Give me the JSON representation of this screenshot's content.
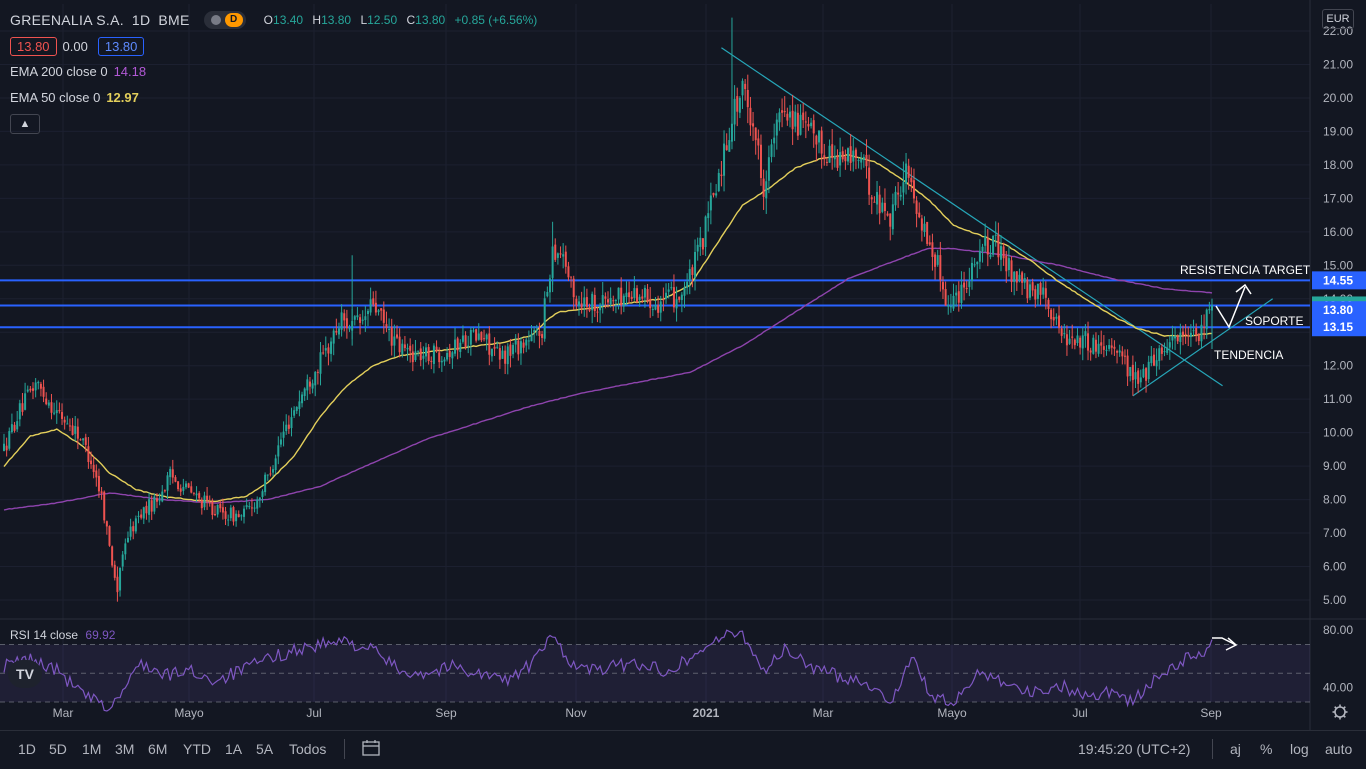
{
  "header": {
    "symbol": "GREENALIA S.A.",
    "interval": "1D",
    "exchange": "BME",
    "market_status_letter": "D",
    "ohlc": [
      {
        "key": "O",
        "value": "13.40"
      },
      {
        "key": "H",
        "value": "13.80"
      },
      {
        "key": "L",
        "value": "12.50"
      },
      {
        "key": "C",
        "value": "13.80"
      }
    ],
    "change": "+0.85 (+6.56%)",
    "bid": "13.80",
    "spread": "0.00",
    "ask": "13.80"
  },
  "indicators": {
    "ema200_label": "EMA 200 close 0",
    "ema200_value": "14.18",
    "ema50_label": "EMA 50 close 0",
    "ema50_value": "12.97",
    "rsi_label": "RSI 14 close",
    "rsi_value": "69.92"
  },
  "currency": "EUR",
  "colors": {
    "background": "#131722",
    "grid": "#1f2433",
    "up": "#26a69a",
    "down": "#ef5350",
    "ema50": "#e3cf5b",
    "ema200": "#8e44ad",
    "rsi": "#7e57c2",
    "hline": "#2962ff",
    "trend": "#26a6b8",
    "annotation": "#ffffff"
  },
  "chart_data": {
    "type": "candlestick",
    "y_axis_ticks": [
      "5.00",
      "6.00",
      "7.00",
      "8.00",
      "9.00",
      "10.00",
      "11.00",
      "12.00",
      "13.00",
      "14.00",
      "15.00",
      "16.00",
      "17.00",
      "18.00",
      "19.00",
      "20.00",
      "21.00",
      "22.00"
    ],
    "ylim": [
      4.6,
      22.3
    ],
    "x_axis_labels": [
      "Mar",
      "Mayo",
      "Jul",
      "Sep",
      "Nov",
      "2021",
      "Mar",
      "Mayo",
      "Jul",
      "Sep"
    ],
    "price_anchors": [
      [
        0,
        9.5
      ],
      [
        5,
        10.5
      ],
      [
        12,
        11.5
      ],
      [
        20,
        10.6
      ],
      [
        28,
        10.0
      ],
      [
        33,
        9.2
      ],
      [
        37,
        8.1
      ],
      [
        40,
        6.6
      ],
      [
        43,
        5.3
      ],
      [
        46,
        6.8
      ],
      [
        52,
        7.6
      ],
      [
        58,
        8.0
      ],
      [
        63,
        8.7
      ],
      [
        68,
        8.4
      ],
      [
        74,
        8.0
      ],
      [
        82,
        7.6
      ],
      [
        90,
        7.5
      ],
      [
        96,
        8.0
      ],
      [
        100,
        8.7
      ],
      [
        105,
        9.8
      ],
      [
        110,
        10.7
      ],
      [
        116,
        11.6
      ],
      [
        122,
        12.4
      ],
      [
        128,
        13.4
      ],
      [
        132,
        13.2
      ],
      [
        136,
        13.3
      ],
      [
        140,
        13.9
      ],
      [
        144,
        13.2
      ],
      [
        150,
        12.5
      ],
      [
        160,
        12.3
      ],
      [
        170,
        12.5
      ],
      [
        176,
        12.9
      ],
      [
        182,
        12.8
      ],
      [
        188,
        12.2
      ],
      [
        194,
        12.6
      ],
      [
        200,
        12.8
      ],
      [
        204,
        13.1
      ],
      [
        208,
        15.5
      ],
      [
        212,
        15.4
      ],
      [
        216,
        14.0
      ],
      [
        224,
        13.9
      ],
      [
        232,
        14.0
      ],
      [
        240,
        14.2
      ],
      [
        248,
        13.9
      ],
      [
        256,
        14.1
      ],
      [
        260,
        14.6
      ],
      [
        265,
        15.8
      ],
      [
        268,
        16.8
      ],
      [
        272,
        18.0
      ],
      [
        276,
        19.5
      ],
      [
        280,
        20.2
      ],
      [
        284,
        19.3
      ],
      [
        288,
        17.4
      ],
      [
        292,
        18.8
      ],
      [
        296,
        19.8
      ],
      [
        300,
        19.3
      ],
      [
        306,
        18.9
      ],
      [
        312,
        18.4
      ],
      [
        318,
        18.2
      ],
      [
        324,
        18.3
      ],
      [
        330,
        17.0
      ],
      [
        336,
        16.5
      ],
      [
        342,
        17.8
      ],
      [
        346,
        16.8
      ],
      [
        350,
        15.8
      ],
      [
        354,
        15.0
      ],
      [
        358,
        13.8
      ],
      [
        362,
        14.2
      ],
      [
        366,
        14.8
      ],
      [
        370,
        15.5
      ],
      [
        376,
        15.6
      ],
      [
        380,
        15.0
      ],
      [
        386,
        14.5
      ],
      [
        390,
        14.0
      ],
      [
        394,
        14.4
      ],
      [
        398,
        13.4
      ],
      [
        402,
        12.9
      ],
      [
        408,
        12.8
      ],
      [
        414,
        12.6
      ],
      [
        420,
        12.7
      ],
      [
        424,
        12.3
      ],
      [
        428,
        11.6
      ],
      [
        432,
        11.7
      ],
      [
        436,
        12.2
      ],
      [
        440,
        12.6
      ],
      [
        446,
        13.0
      ],
      [
        450,
        12.7
      ],
      [
        454,
        13.0
      ],
      [
        458,
        13.8
      ]
    ],
    "ema50_anchors": [
      [
        0,
        9.0
      ],
      [
        10,
        9.9
      ],
      [
        20,
        10.1
      ],
      [
        30,
        9.6
      ],
      [
        40,
        8.8
      ],
      [
        50,
        8.3
      ],
      [
        60,
        8.1
      ],
      [
        70,
        8.0
      ],
      [
        80,
        7.95
      ],
      [
        92,
        8.1
      ],
      [
        100,
        8.5
      ],
      [
        110,
        9.3
      ],
      [
        120,
        10.5
      ],
      [
        130,
        11.4
      ],
      [
        140,
        12.0
      ],
      [
        150,
        12.3
      ],
      [
        160,
        12.4
      ],
      [
        170,
        12.5
      ],
      [
        180,
        12.6
      ],
      [
        190,
        12.7
      ],
      [
        200,
        12.9
      ],
      [
        205,
        13.3
      ],
      [
        210,
        13.6
      ],
      [
        220,
        13.7
      ],
      [
        230,
        13.8
      ],
      [
        240,
        13.9
      ],
      [
        250,
        14.0
      ],
      [
        260,
        14.4
      ],
      [
        270,
        15.6
      ],
      [
        280,
        16.8
      ],
      [
        290,
        17.3
      ],
      [
        300,
        17.9
      ],
      [
        310,
        18.2
      ],
      [
        320,
        18.3
      ],
      [
        330,
        18.1
      ],
      [
        340,
        17.6
      ],
      [
        350,
        17.0
      ],
      [
        360,
        16.2
      ],
      [
        370,
        15.9
      ],
      [
        380,
        15.6
      ],
      [
        390,
        15.1
      ],
      [
        400,
        14.5
      ],
      [
        410,
        14.0
      ],
      [
        420,
        13.5
      ],
      [
        430,
        13.1
      ],
      [
        440,
        12.9
      ],
      [
        450,
        12.9
      ],
      [
        458,
        12.97
      ]
    ],
    "ema200_anchors": [
      [
        0,
        7.7
      ],
      [
        20,
        7.9
      ],
      [
        40,
        8.2
      ],
      [
        60,
        8.0
      ],
      [
        80,
        7.9
      ],
      [
        100,
        8.0
      ],
      [
        120,
        8.4
      ],
      [
        140,
        9.1
      ],
      [
        160,
        9.8
      ],
      [
        180,
        10.3
      ],
      [
        200,
        10.8
      ],
      [
        220,
        11.2
      ],
      [
        240,
        11.5
      ],
      [
        260,
        11.8
      ],
      [
        280,
        12.6
      ],
      [
        300,
        13.6
      ],
      [
        320,
        14.6
      ],
      [
        340,
        15.2
      ],
      [
        350,
        15.5
      ],
      [
        360,
        15.5
      ],
      [
        380,
        15.3
      ],
      [
        400,
        15.0
      ],
      [
        420,
        14.6
      ],
      [
        440,
        14.3
      ],
      [
        458,
        14.18
      ]
    ],
    "rsi_ticks": [
      "40.00",
      "80.00"
    ],
    "rsi_bands": [
      70,
      50,
      30
    ],
    "rsi_anchors": [
      [
        0,
        55
      ],
      [
        10,
        60
      ],
      [
        20,
        52
      ],
      [
        30,
        35
      ],
      [
        40,
        25
      ],
      [
        46,
        40
      ],
      [
        52,
        58
      ],
      [
        60,
        48
      ],
      [
        70,
        52
      ],
      [
        80,
        45
      ],
      [
        90,
        52
      ],
      [
        100,
        60
      ],
      [
        110,
        66
      ],
      [
        120,
        70
      ],
      [
        130,
        72
      ],
      [
        140,
        66
      ],
      [
        150,
        52
      ],
      [
        160,
        50
      ],
      [
        170,
        55
      ],
      [
        180,
        50
      ],
      [
        190,
        45
      ],
      [
        200,
        56
      ],
      [
        208,
        76
      ],
      [
        216,
        55
      ],
      [
        224,
        52
      ],
      [
        232,
        55
      ],
      [
        240,
        57
      ],
      [
        250,
        52
      ],
      [
        260,
        60
      ],
      [
        270,
        74
      ],
      [
        280,
        78
      ],
      [
        288,
        52
      ],
      [
        296,
        66
      ],
      [
        306,
        55
      ],
      [
        316,
        48
      ],
      [
        326,
        45
      ],
      [
        336,
        30
      ],
      [
        344,
        60
      ],
      [
        352,
        34
      ],
      [
        360,
        28
      ],
      [
        370,
        52
      ],
      [
        380,
        44
      ],
      [
        390,
        36
      ],
      [
        400,
        42
      ],
      [
        410,
        34
      ],
      [
        420,
        38
      ],
      [
        428,
        30
      ],
      [
        436,
        45
      ],
      [
        444,
        55
      ],
      [
        450,
        62
      ],
      [
        454,
        62
      ],
      [
        458,
        69.92
      ]
    ],
    "horizontal_levels": [
      {
        "value": 14.55,
        "label": "14.55",
        "color": "#2962ff"
      },
      {
        "value": 13.8,
        "label": "13.80",
        "color": "#26a69a"
      },
      {
        "value": 13.15,
        "label": "13.15",
        "color": "#2962ff"
      }
    ],
    "soporte_badge": "13.80",
    "annotations": {
      "resistencia": "RESISTENCIA TARGET",
      "soporte": "SOPORTE",
      "tendencia": "TENDENCIA"
    }
  },
  "toolbar": {
    "ranges": [
      "1D",
      "5D",
      "1M",
      "3M",
      "6M",
      "YTD",
      "1A",
      "5A",
      "Todos"
    ],
    "clock": "19:45:20 (UTC+2)",
    "right_buttons": [
      "aj",
      "%",
      "log",
      "auto"
    ]
  }
}
